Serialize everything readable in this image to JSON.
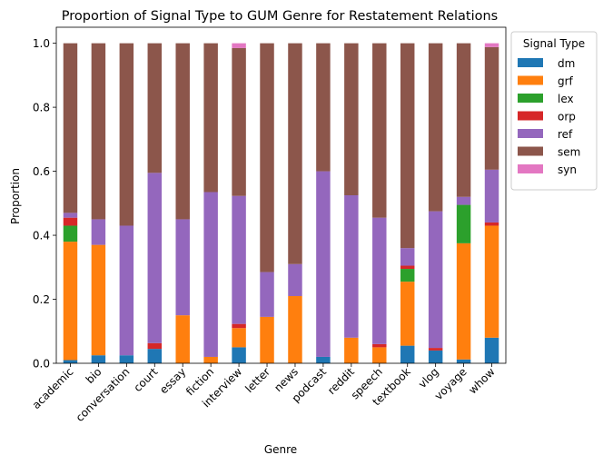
{
  "chart_data": {
    "type": "bar",
    "stacked": true,
    "title": "Proportion of Signal Type to GUM Genre for Restatement Relations",
    "xlabel": "Genre",
    "ylabel": "Proportion",
    "ylim": [
      0,
      1.05
    ],
    "yticks": [
      "0.0",
      "0.2",
      "0.4",
      "0.6",
      "0.8",
      "1.0"
    ],
    "grid": false,
    "legend": {
      "title": "Signal Type",
      "placement": "outside-right-top"
    },
    "categories": [
      "academic",
      "bio",
      "conversation",
      "court",
      "essay",
      "fiction",
      "interview",
      "letter",
      "news",
      "podcast",
      "reddit",
      "speech",
      "textbook",
      "vlog",
      "voyage",
      "whow"
    ],
    "series": [
      {
        "name": "dm",
        "color": "#1f77b4",
        "values": [
          0.01,
          0.025,
          0.025,
          0.045,
          0.0,
          0.0,
          0.05,
          0.0,
          0.0,
          0.02,
          0.0,
          0.0,
          0.055,
          0.04,
          0.012,
          0.08
        ]
      },
      {
        "name": "grf",
        "color": "#ff7f0e",
        "values": [
          0.37,
          0.345,
          0.0,
          0.0,
          0.15,
          0.02,
          0.06,
          0.145,
          0.21,
          0.0,
          0.08,
          0.05,
          0.2,
          0.0,
          0.363,
          0.35
        ]
      },
      {
        "name": "lex",
        "color": "#2ca02c",
        "values": [
          0.05,
          0.0,
          0.0,
          0.0,
          0.0,
          0.0,
          0.0,
          0.0,
          0.0,
          0.0,
          0.0,
          0.0,
          0.04,
          0.0,
          0.12,
          0.0
        ]
      },
      {
        "name": "orp",
        "color": "#d62728",
        "values": [
          0.025,
          0.0,
          0.0,
          0.018,
          0.0,
          0.0,
          0.013,
          0.0,
          0.0,
          0.0,
          0.0,
          0.01,
          0.01,
          0.008,
          0.0,
          0.01
        ]
      },
      {
        "name": "ref",
        "color": "#9467bd",
        "values": [
          0.015,
          0.08,
          0.405,
          0.532,
          0.3,
          0.515,
          0.4,
          0.14,
          0.1,
          0.58,
          0.445,
          0.395,
          0.055,
          0.427,
          0.025,
          0.165
        ]
      },
      {
        "name": "sem",
        "color": "#8c564b",
        "values": [
          0.53,
          0.55,
          0.57,
          0.405,
          0.55,
          0.465,
          0.462,
          0.715,
          0.69,
          0.4,
          0.475,
          0.545,
          0.64,
          0.525,
          0.48,
          0.383
        ]
      },
      {
        "name": "syn",
        "color": "#e377c2",
        "values": [
          0.0,
          0.0,
          0.0,
          0.0,
          0.0,
          0.0,
          0.015,
          0.0,
          0.0,
          0.0,
          0.0,
          0.0,
          0.0,
          0.0,
          0.0,
          0.012
        ]
      }
    ]
  }
}
